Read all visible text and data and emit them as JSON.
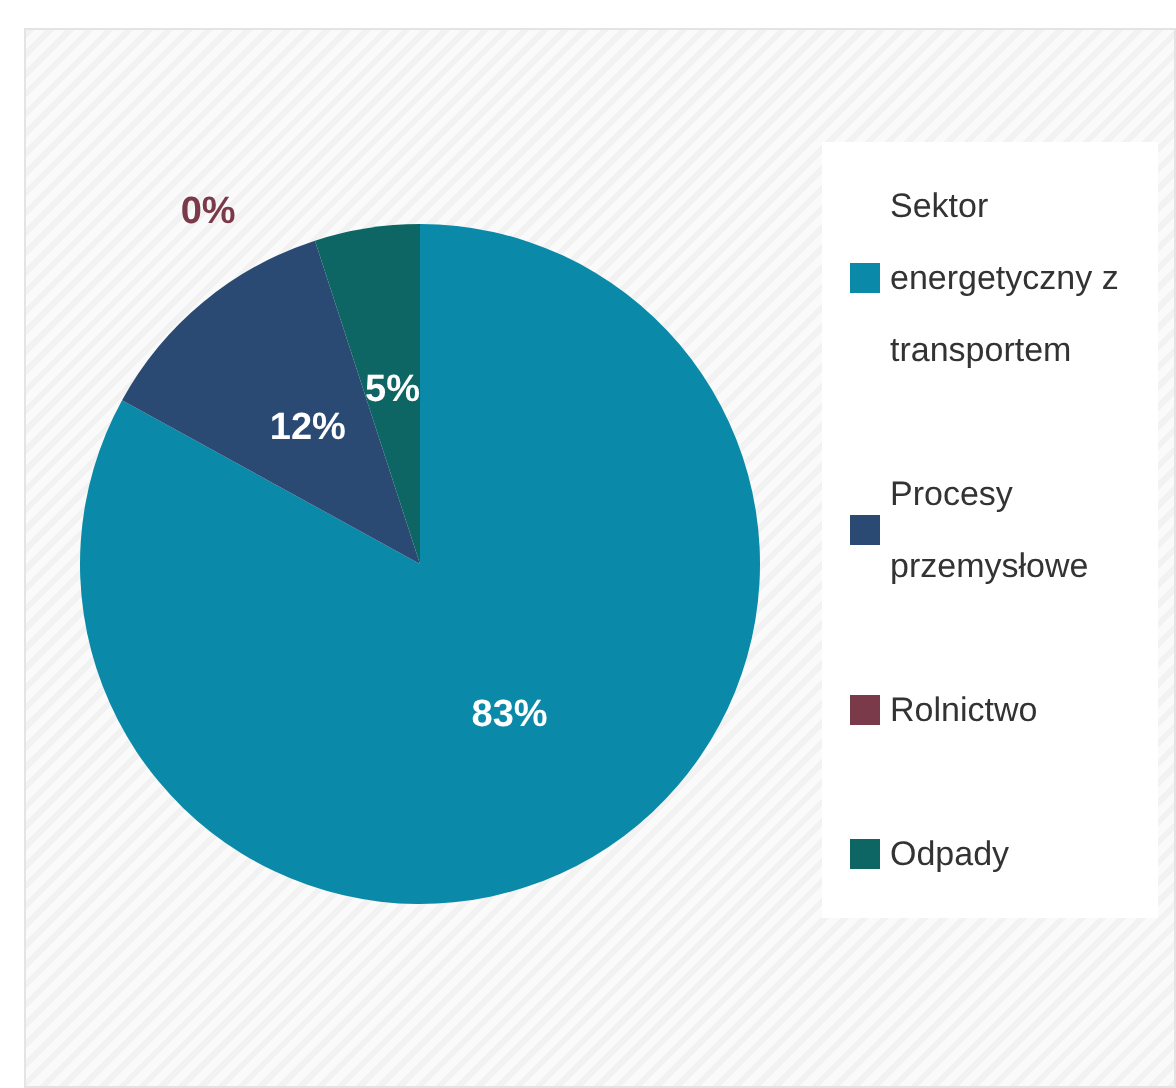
{
  "chart_data": {
    "type": "pie",
    "categories": [
      "Sektor energetyczny z transportem",
      "Procesy przemysłowe",
      "Rolnictwo",
      "Odpady"
    ],
    "values": [
      83,
      12,
      0,
      5
    ],
    "colors": [
      "#0a8aa8",
      "#2b4a73",
      "#7b3a4a",
      "#0d6663"
    ],
    "value_labels": [
      "83%",
      "12%",
      "0%",
      "5%"
    ],
    "legend": "right"
  }
}
